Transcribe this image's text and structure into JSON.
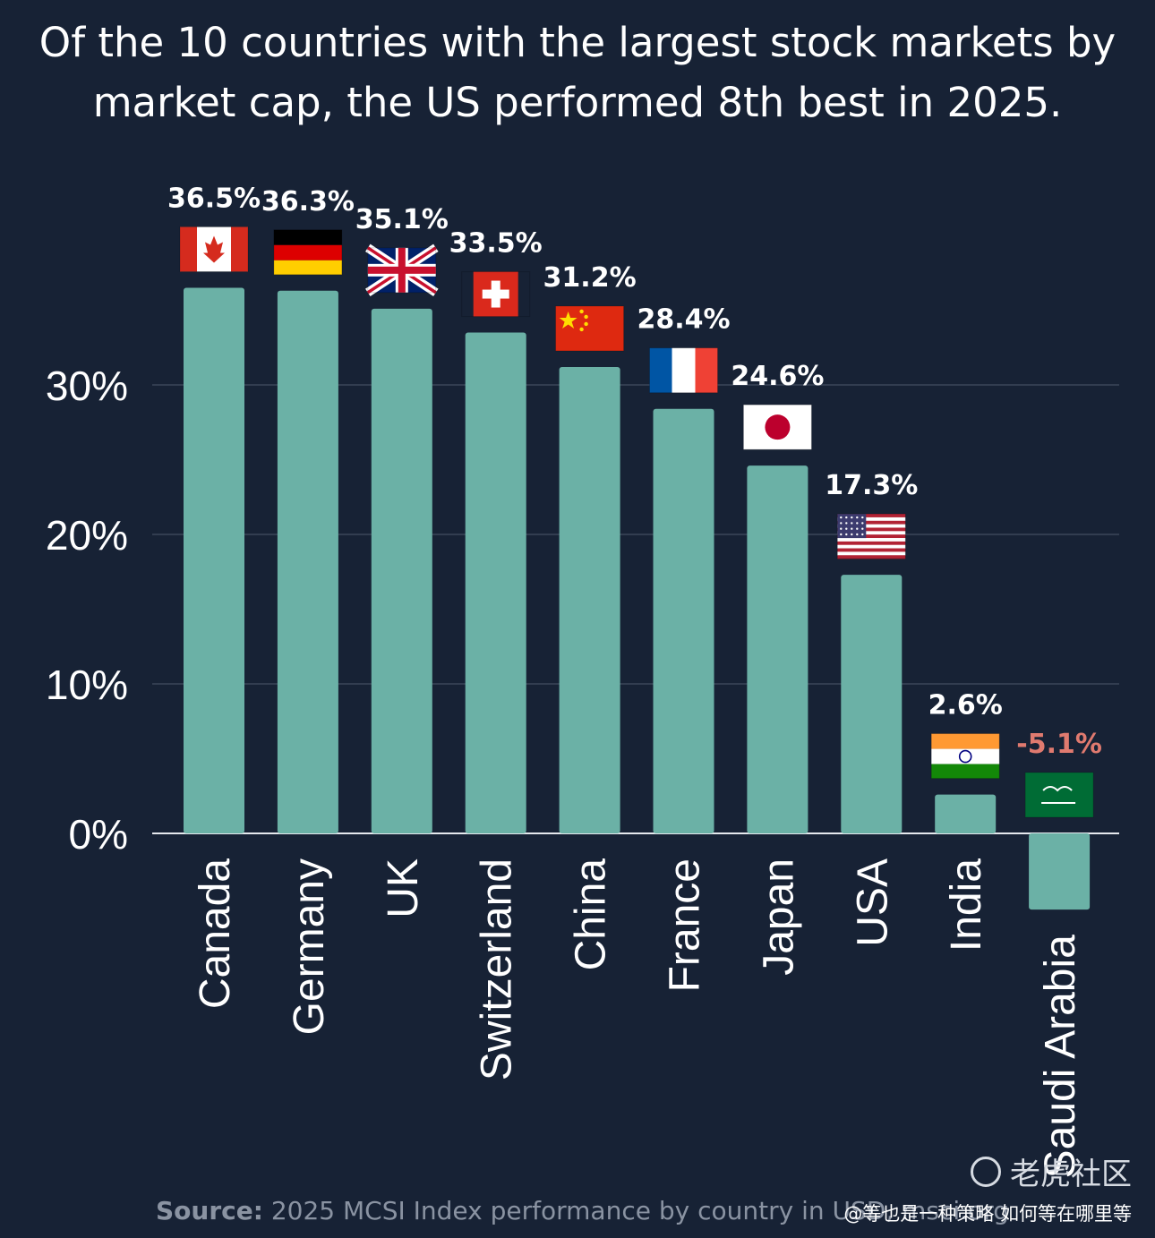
{
  "title_lines": [
    "Of the 10 countries with the largest stock markets by",
    "market cap, the US performed 8th best in 2025."
  ],
  "source": {
    "label": "Source:",
    "text": "2025 MCSI Index performance by country in USD, msci.org"
  },
  "watermark": {
    "brand": "老虎社区",
    "handle": "@等也是一种策略 如何等在哪里等",
    "logo_icon": "tiger-logo-icon"
  },
  "colors": {
    "background": "#172235",
    "bar": "#6bb1a6",
    "grid": "#3b4659",
    "negative_label": "#e07a6f",
    "label": "#ffffff"
  },
  "chart_data": {
    "type": "bar",
    "categories": [
      "Canada",
      "Germany",
      "UK",
      "Switzerland",
      "China",
      "France",
      "Japan",
      "USA",
      "India",
      "Saudi Arabia"
    ],
    "values": [
      36.5,
      36.3,
      35.1,
      33.5,
      31.2,
      28.4,
      24.6,
      17.3,
      2.6,
      -5.1
    ],
    "data_labels": [
      "36.5%",
      "36.3%",
      "35.1%",
      "33.5%",
      "31.2%",
      "28.4%",
      "24.6%",
      "17.3%",
      "2.6%",
      "-5.1%"
    ],
    "flags": [
      "flag-canada-icon",
      "flag-germany-icon",
      "flag-uk-icon",
      "flag-switzerland-icon",
      "flag-china-icon",
      "flag-france-icon",
      "flag-japan-icon",
      "flag-usa-icon",
      "flag-india-icon",
      "flag-saudi-arabia-icon"
    ],
    "y_ticks": [
      0,
      10,
      20,
      30
    ],
    "y_tick_labels": [
      "0%",
      "10%",
      "20%",
      "30%"
    ],
    "ylim": [
      -5.1,
      36.5
    ],
    "grid": true,
    "legend": "none",
    "category_label_orientation": "vertical"
  }
}
